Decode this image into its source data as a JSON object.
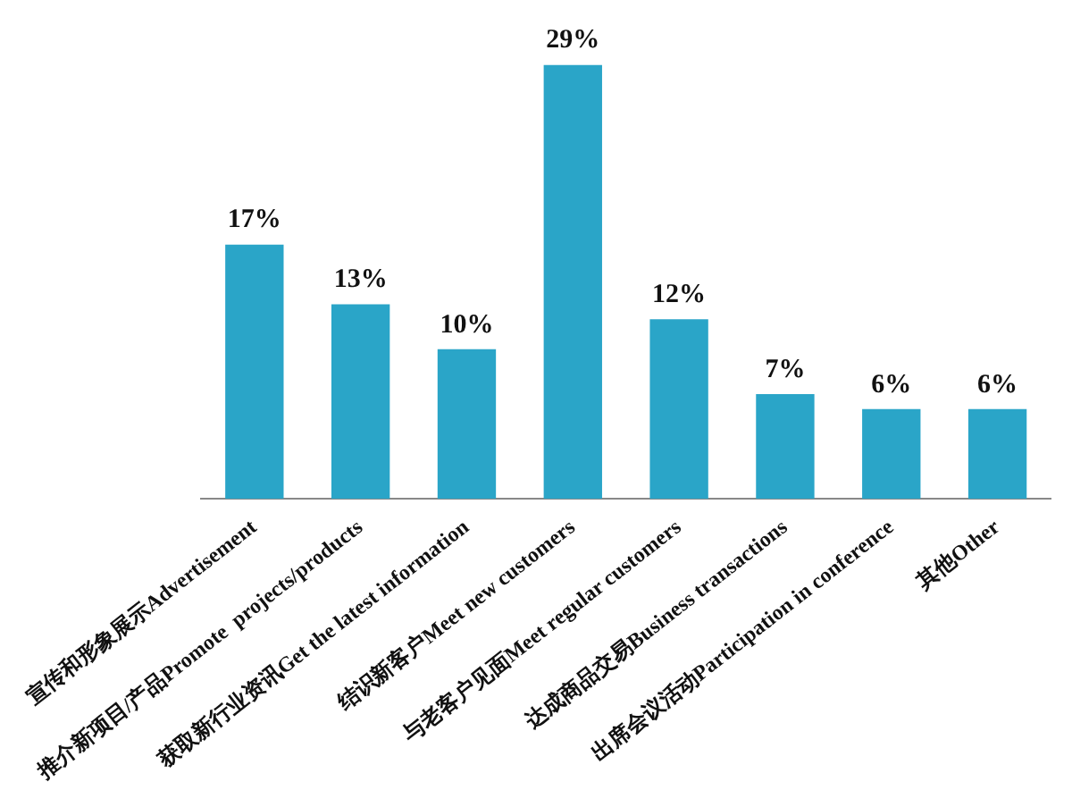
{
  "chart_data": {
    "type": "bar",
    "categories": [
      "宣传和形象展示Advertisement",
      "推介新项目/产品Promote  projects/products",
      "获取新行业资讯Get the latest information",
      "结识新客户Meet new customers",
      "与老客户见面Meet regular customers",
      "达成商品交易Business transactions",
      "出席会议活动Participation in conference",
      "其他Other"
    ],
    "values": [
      17,
      13,
      10,
      29,
      12,
      7,
      6,
      6
    ],
    "value_labels": [
      "17%",
      "13%",
      "10%",
      "29%",
      "12%",
      "7%",
      "6%",
      "6%"
    ],
    "color": "#2aa5c8",
    "tick_labels": "x",
    "grid": false,
    "legend": false
  }
}
